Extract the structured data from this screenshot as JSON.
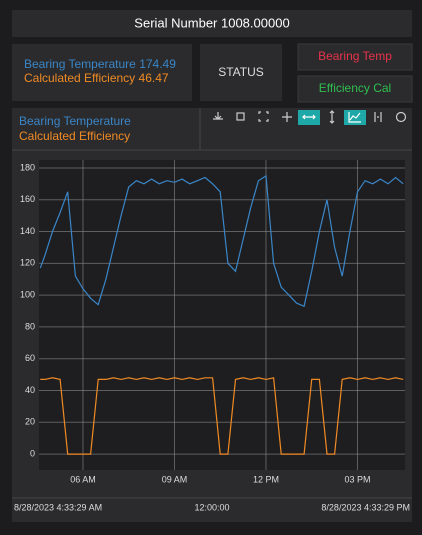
{
  "header": {
    "title": "Serial Number 1008.00000"
  },
  "readouts": [
    174.49,
    46.47
  ],
  "status": "STATUS",
  "buttons": [
    "Bearing Temp",
    "Efficiency Cal"
  ],
  "range": {
    "start": "8/28/2023 4:33:29 AM",
    "mid": "12:00:00",
    "end": "8/28/2023 4:33:29 PM"
  },
  "chart_data": {
    "type": "line",
    "x": [
      4.6,
      4.75,
      5.0,
      5.25,
      5.5,
      5.75,
      6.0,
      6.25,
      6.5,
      6.75,
      7.0,
      7.25,
      7.5,
      7.75,
      8.0,
      8.25,
      8.5,
      8.75,
      9.0,
      9.25,
      9.5,
      9.75,
      10.0,
      10.25,
      10.5,
      10.75,
      11.0,
      11.25,
      11.5,
      11.75,
      12.0,
      12.25,
      12.5,
      12.75,
      13.0,
      13.25,
      13.5,
      13.75,
      14.0,
      14.25,
      14.5,
      14.75,
      15.0,
      15.25,
      15.5,
      15.75,
      16.0,
      16.25,
      16.5
    ],
    "series": [
      {
        "name": "Bearing Temperature",
        "color": "#3a86c8",
        "values": [
          117,
          125,
          140,
          152,
          165,
          112,
          104,
          98,
          94,
          110,
          130,
          150,
          168,
          172,
          170,
          173,
          170,
          172,
          171,
          173,
          170,
          172,
          174,
          170,
          165,
          120,
          115,
          135,
          155,
          172,
          175,
          120,
          105,
          100,
          95,
          93,
          115,
          140,
          160,
          130,
          112,
          140,
          165,
          172,
          170,
          173,
          170,
          174,
          170
        ]
      },
      {
        "name": "Calculated Efficiency",
        "color": "#f08a24",
        "values": [
          47,
          47,
          48,
          47,
          0,
          0,
          0,
          0,
          47,
          47,
          48,
          47,
          48,
          47,
          48,
          47,
          48,
          47,
          48,
          47,
          48,
          47,
          48,
          48,
          0,
          0,
          47,
          48,
          47,
          48,
          47,
          48,
          0,
          0,
          0,
          0,
          47,
          47,
          0,
          0,
          47,
          48,
          47,
          48,
          47,
          48,
          47,
          48,
          47
        ]
      }
    ],
    "xlim": [
      4.558,
      16.558
    ],
    "xticks": [
      {
        "value": 6,
        "label": "06 AM"
      },
      {
        "value": 9,
        "label": "09 AM"
      },
      {
        "value": 12,
        "label": "12 PM"
      },
      {
        "value": 15,
        "label": "03 PM"
      }
    ],
    "ylim": [
      -10,
      185
    ],
    "yticks": [
      0,
      20,
      40,
      60,
      80,
      100,
      120,
      140,
      160,
      180
    ],
    "grid": true
  }
}
